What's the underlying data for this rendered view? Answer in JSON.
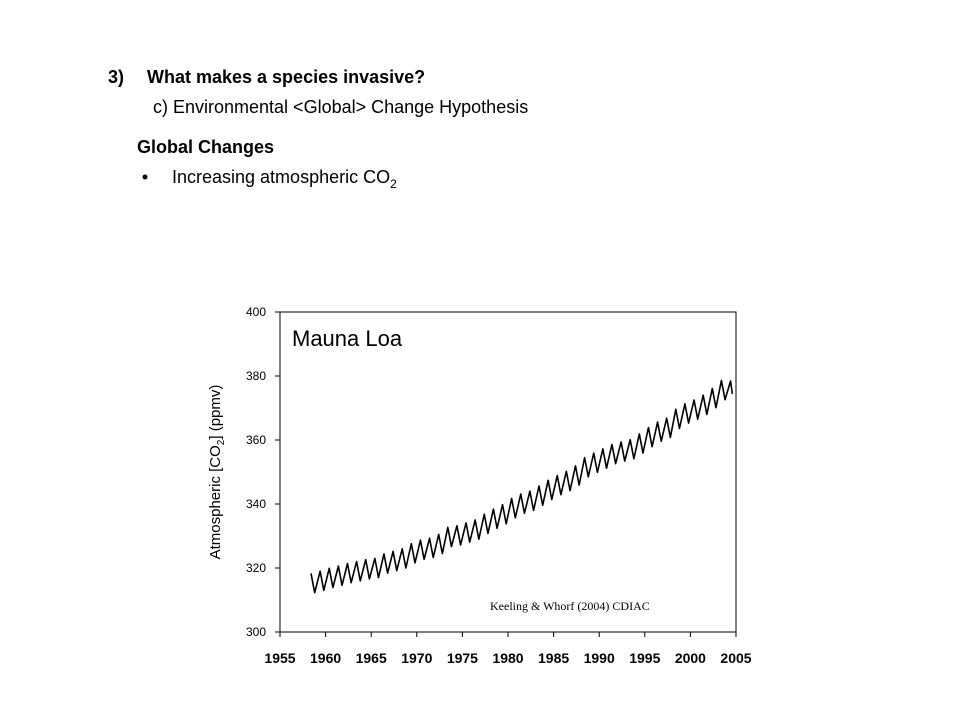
{
  "slide": {
    "number": "3)",
    "heading": "What makes a species invasive?",
    "subheading": "c) Environmental <Global> Change Hypothesis",
    "section": "Global Changes",
    "bullet": {
      "text": "Increasing atmospheric CO",
      "sub": "2"
    }
  },
  "chart_data": {
    "type": "line",
    "annotation": "Mauna Loa",
    "source": "Keeling & Whorf (2004) CDIAC",
    "ylabel": {
      "text": "Atmospheric [CO",
      "sub": "2",
      "after": "] (ppmv)"
    },
    "color": "#000000",
    "xlim": [
      1955,
      2005
    ],
    "xticks": [
      1955,
      1960,
      1965,
      1970,
      1975,
      1980,
      1985,
      1990,
      1995,
      2000,
      2005
    ],
    "ylim": [
      300,
      400
    ],
    "yticks": [
      300,
      320,
      340,
      360,
      380,
      400
    ],
    "x": [
      1958.4,
      1958.8,
      1959.4,
      1959.8,
      1960.4,
      1960.8,
      1961.4,
      1961.8,
      1962.4,
      1962.8,
      1963.4,
      1963.8,
      1964.4,
      1964.8,
      1965.4,
      1965.8,
      1966.4,
      1966.8,
      1967.4,
      1967.8,
      1968.4,
      1968.8,
      1969.4,
      1969.8,
      1970.4,
      1970.8,
      1971.4,
      1971.8,
      1972.4,
      1972.8,
      1973.4,
      1973.8,
      1974.4,
      1974.8,
      1975.4,
      1975.8,
      1976.4,
      1976.8,
      1977.4,
      1977.8,
      1978.4,
      1978.8,
      1979.4,
      1979.8,
      1980.4,
      1980.8,
      1981.4,
      1981.8,
      1982.4,
      1982.8,
      1983.4,
      1983.8,
      1984.4,
      1984.8,
      1985.4,
      1985.8,
      1986.4,
      1986.8,
      1987.4,
      1987.8,
      1988.4,
      1988.8,
      1989.4,
      1989.8,
      1990.4,
      1990.8,
      1991.4,
      1991.8,
      1992.4,
      1992.8,
      1993.4,
      1993.8,
      1994.4,
      1994.8,
      1995.4,
      1995.8,
      1996.4,
      1996.8,
      1997.4,
      1997.8,
      1998.4,
      1998.8,
      1999.4,
      1999.8,
      2000.4,
      2000.8,
      2001.4,
      2001.8,
      2002.4,
      2002.8,
      2003.4,
      2003.8,
      2004.4,
      2004.6
    ],
    "values": [
      318.3,
      312.3,
      319.0,
      313.0,
      319.9,
      313.9,
      320.6,
      314.6,
      321.4,
      315.4,
      322.0,
      316.0,
      322.6,
      316.6,
      323.0,
      317.0,
      324.4,
      318.4,
      325.2,
      319.2,
      326.0,
      320.0,
      327.6,
      321.6,
      328.7,
      322.7,
      329.3,
      323.3,
      330.5,
      324.5,
      332.7,
      326.7,
      333.2,
      327.2,
      334.1,
      328.1,
      335.0,
      329.0,
      336.8,
      330.8,
      338.4,
      332.4,
      339.8,
      333.8,
      341.7,
      335.7,
      343.1,
      337.1,
      344.0,
      338.0,
      345.6,
      339.6,
      347.4,
      341.4,
      348.9,
      342.9,
      350.2,
      344.2,
      351.9,
      345.9,
      354.5,
      348.5,
      355.9,
      349.9,
      357.2,
      351.2,
      358.6,
      352.6,
      359.4,
      353.4,
      360.1,
      354.1,
      361.9,
      355.9,
      363.9,
      357.9,
      365.6,
      359.6,
      366.8,
      360.8,
      369.6,
      363.6,
      371.3,
      365.3,
      372.5,
      366.5,
      374.0,
      368.0,
      376.1,
      370.1,
      378.6,
      372.6,
      378.4,
      374.4
    ]
  }
}
